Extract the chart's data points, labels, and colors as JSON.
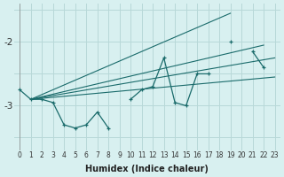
{
  "xlabel": "Humidex (Indice chaleur)",
  "bg_color": "#d8f0f0",
  "grid_color": "#b8d8d8",
  "line_color": "#1a6b6b",
  "x_values": [
    0,
    1,
    2,
    3,
    4,
    5,
    6,
    7,
    8,
    9,
    10,
    11,
    12,
    13,
    14,
    15,
    16,
    17,
    18,
    19,
    20,
    21,
    22,
    23
  ],
  "y_values": [
    -2.75,
    -2.9,
    -2.9,
    -2.95,
    -3.3,
    -3.35,
    -3.3,
    -3.1,
    -3.35,
    null,
    -2.9,
    -2.75,
    -2.7,
    -2.25,
    -2.95,
    -3.0,
    -2.5,
    -2.5,
    null,
    -2.0,
    null,
    -2.15,
    -2.4,
    null
  ],
  "fan_lines": [
    {
      "x": [
        1,
        19
      ],
      "y": [
        -2.9,
        -1.55
      ]
    },
    {
      "x": [
        1,
        22
      ],
      "y": [
        -2.9,
        -2.05
      ]
    },
    {
      "x": [
        1,
        23
      ],
      "y": [
        -2.9,
        -2.25
      ]
    },
    {
      "x": [
        1,
        23
      ],
      "y": [
        -2.9,
        -2.55
      ]
    }
  ],
  "ylim": [
    -3.7,
    -1.4
  ],
  "xlim": [
    -0.5,
    23.5
  ],
  "yticks": [
    -3.0,
    -2.0
  ],
  "xticks": [
    0,
    1,
    2,
    3,
    4,
    5,
    6,
    7,
    8,
    9,
    10,
    11,
    12,
    13,
    14,
    15,
    16,
    17,
    18,
    19,
    20,
    21,
    22,
    23
  ],
  "hgrid_vals": [
    -3.5,
    -3.0,
    -2.5,
    -2.0,
    -1.5
  ]
}
